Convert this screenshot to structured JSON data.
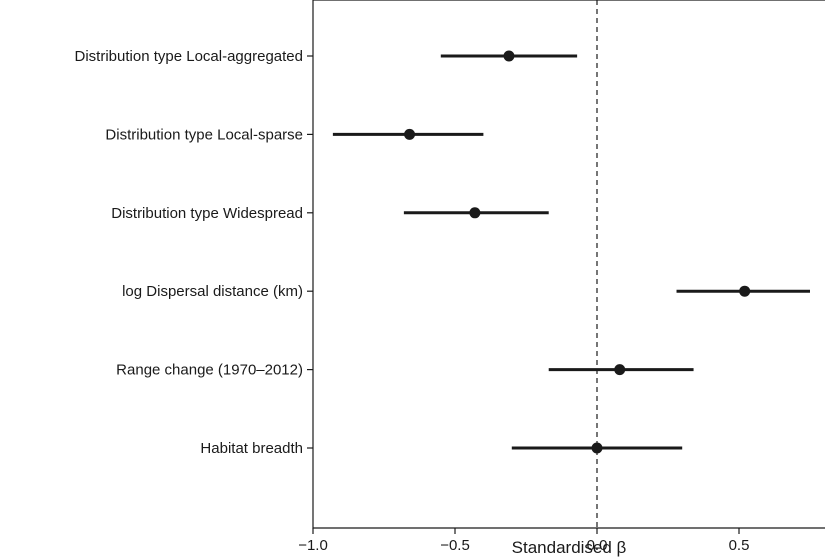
{
  "chart_data": {
    "type": "forest",
    "title": "",
    "xlabel": "Standardised β",
    "ylabel": "",
    "xlim": [
      -1.0,
      0.75
    ],
    "x_ticks": [
      -1.0,
      -0.5,
      0.0,
      0.5
    ],
    "x_tick_labels": [
      "−1.0",
      "−0.5",
      "0.0",
      "0.5"
    ],
    "reference_line": 0.0,
    "grid": false,
    "colors": {
      "marker": "#1a1a1a",
      "axis": "#1a1a1a"
    },
    "rows": [
      {
        "label": "Distribution type  Local-aggregated",
        "estimate": -0.31,
        "lower": -0.55,
        "upper": -0.07
      },
      {
        "label": "Distribution type  Local-sparse",
        "estimate": -0.66,
        "lower": -0.93,
        "upper": -0.4
      },
      {
        "label": "Distribution type  Widespread",
        "estimate": -0.43,
        "lower": -0.68,
        "upper": -0.17
      },
      {
        "label": "log Dispersal distance (km)",
        "estimate": 0.52,
        "lower": 0.28,
        "upper": 0.75
      },
      {
        "label": "Range change (1970–2012)",
        "estimate": 0.08,
        "lower": -0.17,
        "upper": 0.34
      },
      {
        "label": "Habitat breadth",
        "estimate": 0.0,
        "lower": -0.3,
        "upper": 0.3
      }
    ]
  }
}
